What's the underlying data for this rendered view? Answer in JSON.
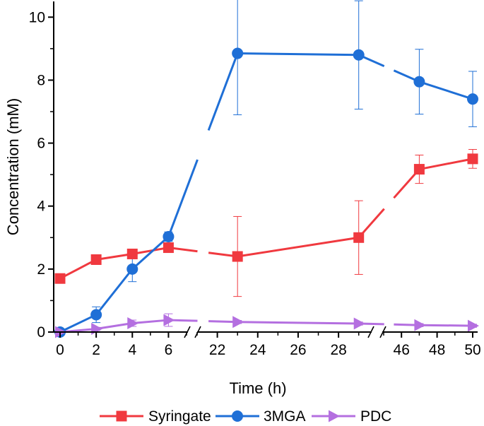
{
  "chart_data": {
    "type": "line",
    "xlabel": "Time (h)",
    "ylabel": "Concentration (mM)",
    "x_ticks": [
      0,
      2,
      4,
      6,
      22,
      24,
      26,
      28,
      46,
      48,
      50
    ],
    "x_segments": [
      [
        0,
        7
      ],
      [
        21,
        29.5
      ],
      [
        45,
        50
      ]
    ],
    "y_ticks": [
      0,
      2,
      4,
      6,
      8,
      10
    ],
    "ylim": [
      0,
      10.5
    ],
    "legend_position": "bottom",
    "series": [
      {
        "name": "Syringate",
        "marker": "square",
        "color": "#f0393f",
        "x": [
          0,
          2,
          4,
          6,
          23,
          29,
          47,
          50
        ],
        "y": [
          1.7,
          2.3,
          2.48,
          2.68,
          2.4,
          3.0,
          5.17,
          5.5
        ],
        "err": [
          0.05,
          0.05,
          0.1,
          0.1,
          1.27,
          1.17,
          0.45,
          0.3
        ]
      },
      {
        "name": "3MGA",
        "marker": "circle",
        "color": "#1f6fd6",
        "x": [
          0,
          2,
          4,
          6,
          23,
          29,
          47,
          50
        ],
        "y": [
          0.0,
          0.55,
          2.0,
          3.03,
          8.85,
          8.8,
          7.95,
          7.4
        ],
        "err": [
          0.05,
          0.25,
          0.4,
          0.15,
          1.95,
          1.72,
          1.03,
          0.88
        ]
      },
      {
        "name": "PDC",
        "marker": "triangle-right",
        "color": "#b46fe0",
        "x": [
          0,
          2,
          4,
          6,
          23,
          29,
          47,
          50
        ],
        "y": [
          0.0,
          0.1,
          0.28,
          0.38,
          0.32,
          0.27,
          0.22,
          0.2
        ],
        "err": [
          0.02,
          0.05,
          0.1,
          0.2,
          0.05,
          0.05,
          0.05,
          0.05
        ]
      }
    ]
  }
}
